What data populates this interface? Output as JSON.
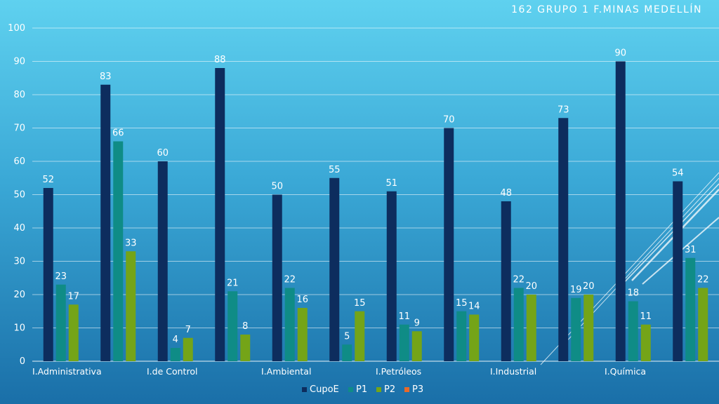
{
  "slide": {
    "title": "162  GRUPO 1  F.MINAS  MEDELLÍN"
  },
  "chart_data": {
    "type": "bar",
    "categories": [
      "I.Administrativa",
      "I.de Control",
      "I.Ambiental",
      "I.Petróleos",
      "I.Industrial",
      "I.Química"
    ],
    "x": [
      "I.Administrativa",
      "",
      "I.de Control",
      "",
      "I.Ambiental",
      "",
      "I.Petróleos",
      "",
      "I.Industrial",
      "",
      "I.Química",
      ""
    ],
    "series": [
      {
        "name": "CupoE",
        "color": "#0d2d5e",
        "values": [
          52,
          83,
          60,
          88,
          50,
          55,
          51,
          70,
          48,
          73,
          90,
          54
        ]
      },
      {
        "name": "P1",
        "color": "#0f8c86",
        "values": [
          23,
          66,
          4,
          21,
          22,
          5,
          11,
          15,
          22,
          19,
          18,
          31
        ]
      },
      {
        "name": "P2",
        "color": "#74a418",
        "values": [
          17,
          33,
          7,
          8,
          16,
          15,
          9,
          14,
          20,
          20,
          11,
          22
        ]
      },
      {
        "name": "P3",
        "color": "#e8692a",
        "values": [
          null,
          null,
          null,
          null,
          null,
          null,
          null,
          null,
          null,
          null,
          null,
          null
        ]
      }
    ],
    "ylim": [
      0,
      100
    ],
    "yticks": [
      0,
      10,
      20,
      30,
      40,
      50,
      60,
      70,
      80,
      90,
      100
    ],
    "grid": true,
    "legend": "bottom-center",
    "data_labels": true
  }
}
